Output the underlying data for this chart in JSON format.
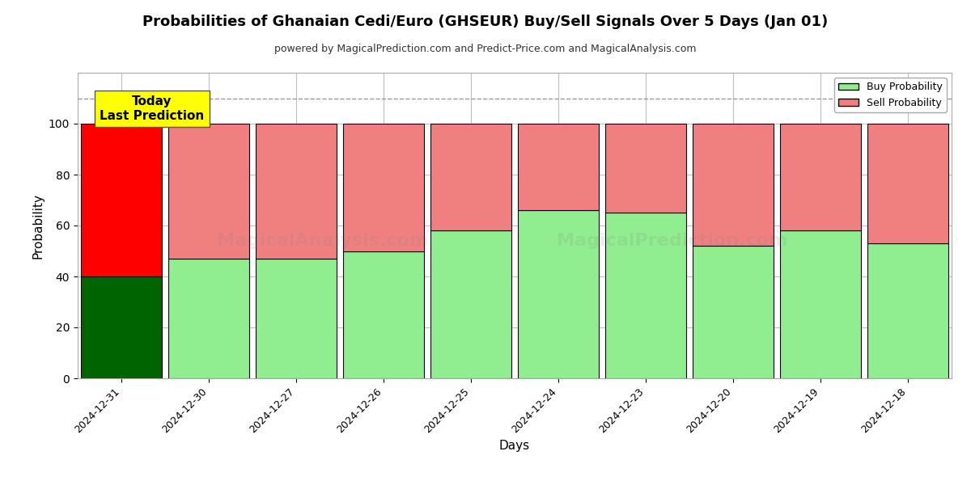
{
  "title": "Probabilities of Ghanaian Cedi/Euro (GHSEUR) Buy/Sell Signals Over 5 Days (Jan 01)",
  "subtitle": "powered by MagicalPrediction.com and Predict-Price.com and MagicalAnalysis.com",
  "xlabel": "Days",
  "ylabel": "Probability",
  "dates": [
    "2024-12-31",
    "2024-12-30",
    "2024-12-27",
    "2024-12-26",
    "2024-12-25",
    "2024-12-24",
    "2024-12-23",
    "2024-12-20",
    "2024-12-19",
    "2024-12-18"
  ],
  "buy_values": [
    40,
    47,
    47,
    50,
    58,
    66,
    65,
    52,
    58,
    53
  ],
  "sell_values": [
    60,
    53,
    53,
    50,
    42,
    34,
    35,
    48,
    42,
    47
  ],
  "today_buy_color": "#006400",
  "today_sell_color": "#FF0000",
  "buy_color": "#90EE90",
  "sell_color": "#F08080",
  "today_label_bg": "#FFFF00",
  "today_label_text": "Today\nLast Prediction",
  "dashed_line_y": 110,
  "ylim": [
    0,
    120
  ],
  "yticks": [
    0,
    20,
    40,
    60,
    80,
    100
  ],
  "bar_edge_color": "#000000",
  "bar_edge_width": 0.8,
  "grid_color": "#808080",
  "grid_alpha": 0.5,
  "watermark_alpha": 0.15,
  "legend_buy_label": "Buy Probability",
  "legend_sell_label": "Sell Probability",
  "bar_width": 0.93
}
